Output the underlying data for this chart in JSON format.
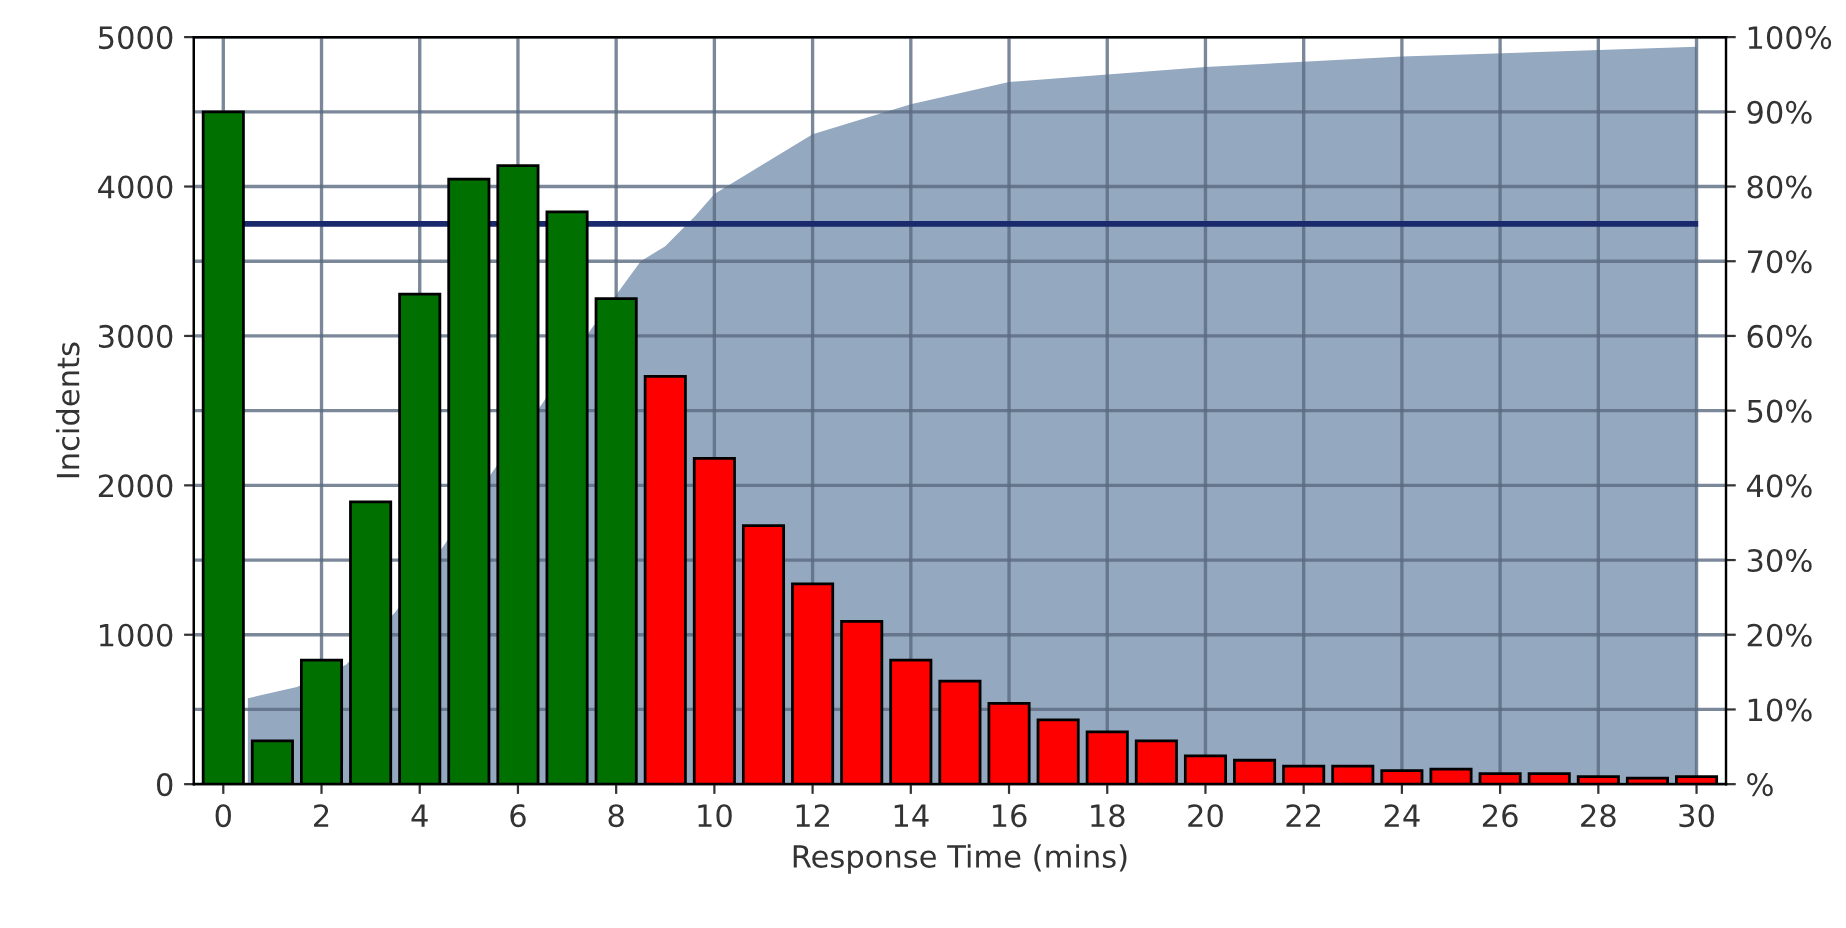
{
  "chart_data": {
    "type": "bar",
    "xlabel": "Response Time (mins)",
    "ylabel": "Incidents",
    "x": [
      0,
      1,
      2,
      3,
      4,
      5,
      6,
      7,
      8,
      9,
      10,
      11,
      12,
      13,
      14,
      15,
      16,
      17,
      18,
      19,
      20,
      21,
      22,
      23,
      24,
      25,
      26,
      27,
      28,
      29,
      30
    ],
    "series": [
      {
        "values": [
          4500,
          290,
          830,
          1890,
          3280,
          4050,
          4140,
          3830,
          3250,
          2730,
          2180,
          1730,
          1340,
          1090,
          830,
          690,
          540,
          430,
          350,
          290,
          190,
          160,
          120,
          120,
          90,
          100,
          70,
          70,
          50,
          40,
          50
        ],
        "colors": [
          "#007000",
          "#007000",
          "#007000",
          "#007000",
          "#007000",
          "#007000",
          "#007000",
          "#007000",
          "#007000",
          "#ff0000",
          "#ff0000",
          "#ff0000",
          "#ff0000",
          "#ff0000",
          "#ff0000",
          "#ff0000",
          "#ff0000",
          "#ff0000",
          "#ff0000",
          "#ff0000",
          "#ff0000",
          "#ff0000",
          "#ff0000",
          "#ff0000",
          "#ff0000",
          "#ff0000",
          "#ff0000",
          "#ff0000",
          "#ff0000",
          "#ff0000",
          "#ff0000"
        ]
      },
      {
        "type": "area",
        "axis": "y2",
        "color": "#94a8c0",
        "x": [
          0.5,
          1.5,
          2.5,
          3.5,
          4.5,
          5.5,
          6.5,
          7.5,
          8.5,
          9,
          9.6,
          10,
          12,
          14,
          16,
          20,
          24,
          30
        ],
        "values": [
          11.5,
          13,
          16,
          23,
          32,
          42,
          51,
          61,
          70,
          72,
          76,
          79,
          87,
          91,
          94,
          96,
          97.4,
          98.7
        ]
      }
    ],
    "ref_lines": [
      {
        "axis": "y2",
        "value": 75,
        "color": "#1a2a6c"
      }
    ],
    "xlim": [
      -0.6,
      30.6
    ],
    "xticks": [
      0,
      2,
      4,
      6,
      8,
      10,
      12,
      14,
      16,
      18,
      20,
      22,
      24,
      26,
      28,
      30
    ],
    "ylim": [
      0,
      5000
    ],
    "yticks": [
      0,
      1000,
      2000,
      3000,
      4000,
      5000
    ],
    "y2lim": [
      0,
      100
    ],
    "y2ticks": [
      {
        "value": 0,
        "label": "%"
      },
      {
        "value": 10,
        "label": "10%"
      },
      {
        "value": 20,
        "label": "20%"
      },
      {
        "value": 30,
        "label": "30%"
      },
      {
        "value": 40,
        "label": "40%"
      },
      {
        "value": 50,
        "label": "50%"
      },
      {
        "value": 60,
        "label": "60%"
      },
      {
        "value": 70,
        "label": "70%"
      },
      {
        "value": 80,
        "label": "80%"
      },
      {
        "value": 90,
        "label": "90%"
      },
      {
        "value": 100,
        "label": "100%"
      }
    ],
    "grid": true
  }
}
